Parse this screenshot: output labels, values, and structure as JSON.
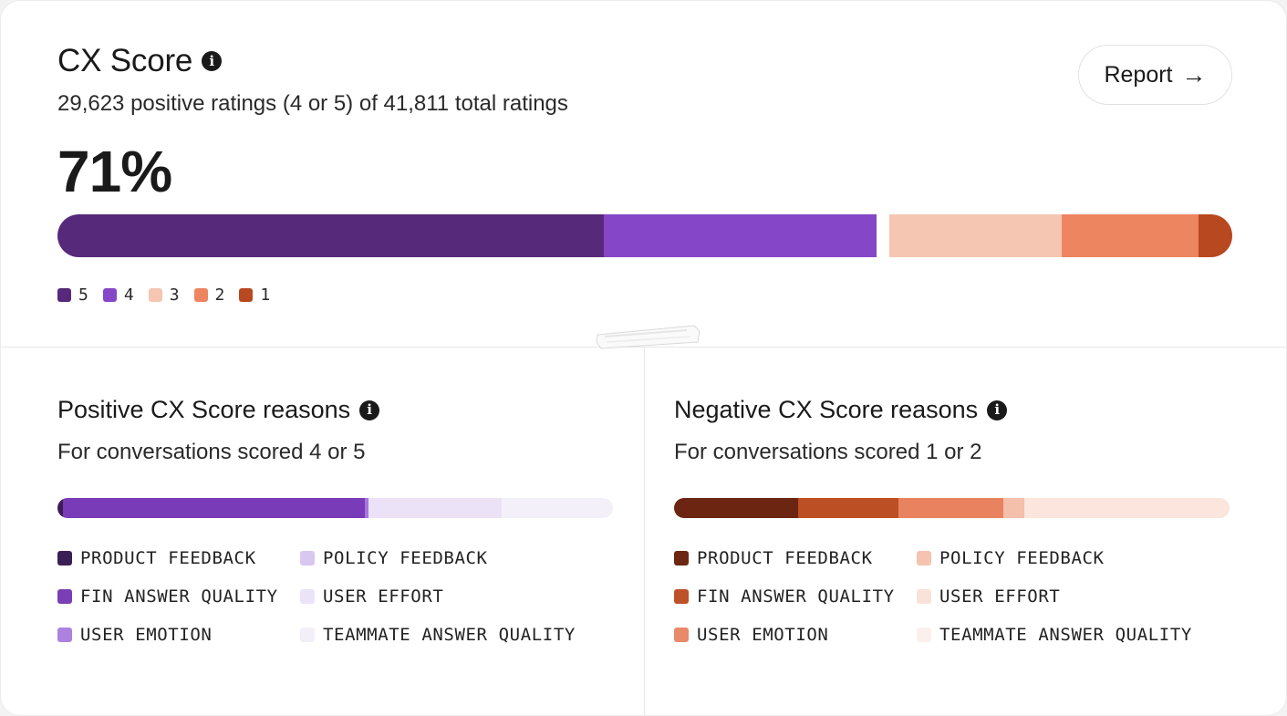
{
  "header": {
    "title": "CX Score",
    "subtitle": "29,623 positive ratings (4 or 5) of 41,811 total ratings",
    "score_percent": "71%",
    "report_label": "Report"
  },
  "icons": {
    "info": "info-icon",
    "arrow": "arrow-right-icon"
  },
  "rating_distribution": {
    "segments": [
      {
        "label": "5",
        "share": 0.47,
        "color": "#56297a"
      },
      {
        "label": "4",
        "share": 0.235,
        "color": "#8547c8"
      },
      {
        "label": "3",
        "share": 0.148,
        "color": "#f5c6b2"
      },
      {
        "label": "2",
        "share": 0.118,
        "color": "#ec8560"
      },
      {
        "label": "1",
        "share": 0.018,
        "color": "#b8481f"
      }
    ],
    "legend": [
      "5",
      "4",
      "3",
      "2",
      "1"
    ]
  },
  "positive": {
    "title": "Positive CX Score reasons",
    "subtitle": "For conversations scored 4 or 5",
    "bar_segments": [
      {
        "share": 0.01,
        "color": "#3b1d58"
      },
      {
        "share": 0.544,
        "color": "#7a3bb8"
      },
      {
        "share": 0.007,
        "color": "#a775dc"
      },
      {
        "share": 0.24,
        "color": "#ebe2f8"
      },
      {
        "share": 0.199,
        "color": "#f4f0fa"
      }
    ],
    "reasons": [
      {
        "label": "PRODUCT FEEDBACK",
        "color": "#3a1f55"
      },
      {
        "label": "POLICY FEEDBACK",
        "color": "#d8c7f1"
      },
      {
        "label": "FIN ANSWER QUALITY",
        "color": "#7a3fb4"
      },
      {
        "label": "USER EFFORT",
        "color": "#ebe3f8"
      },
      {
        "label": "USER EMOTION",
        "color": "#ad82de"
      },
      {
        "label": "TEAMMATE ANSWER QUALITY",
        "color": "#f3eff9"
      }
    ]
  },
  "negative": {
    "title": "Negative CX Score reasons",
    "subtitle": "For conversations scored 1 or 2",
    "bar_segments": [
      {
        "share": 0.224,
        "color": "#6b2510"
      },
      {
        "share": 0.18,
        "color": "#bd4f24"
      },
      {
        "share": 0.189,
        "color": "#e8825f"
      },
      {
        "share": 0.037,
        "color": "#f4bfab"
      },
      {
        "share": 0.37,
        "color": "#fbe5dd"
      }
    ],
    "reasons": [
      {
        "label": "PRODUCT FEEDBACK",
        "color": "#6b2712"
      },
      {
        "label": "POLICY FEEDBACK",
        "color": "#f5c3b0"
      },
      {
        "label": "FIN ANSWER QUALITY",
        "color": "#bd5127"
      },
      {
        "label": "USER EFFORT",
        "color": "#f9e2d9"
      },
      {
        "label": "USER EMOTION",
        "color": "#e8896a"
      },
      {
        "label": "TEAMMATE ANSWER QUALITY",
        "color": "#fcf0ec"
      }
    ]
  }
}
